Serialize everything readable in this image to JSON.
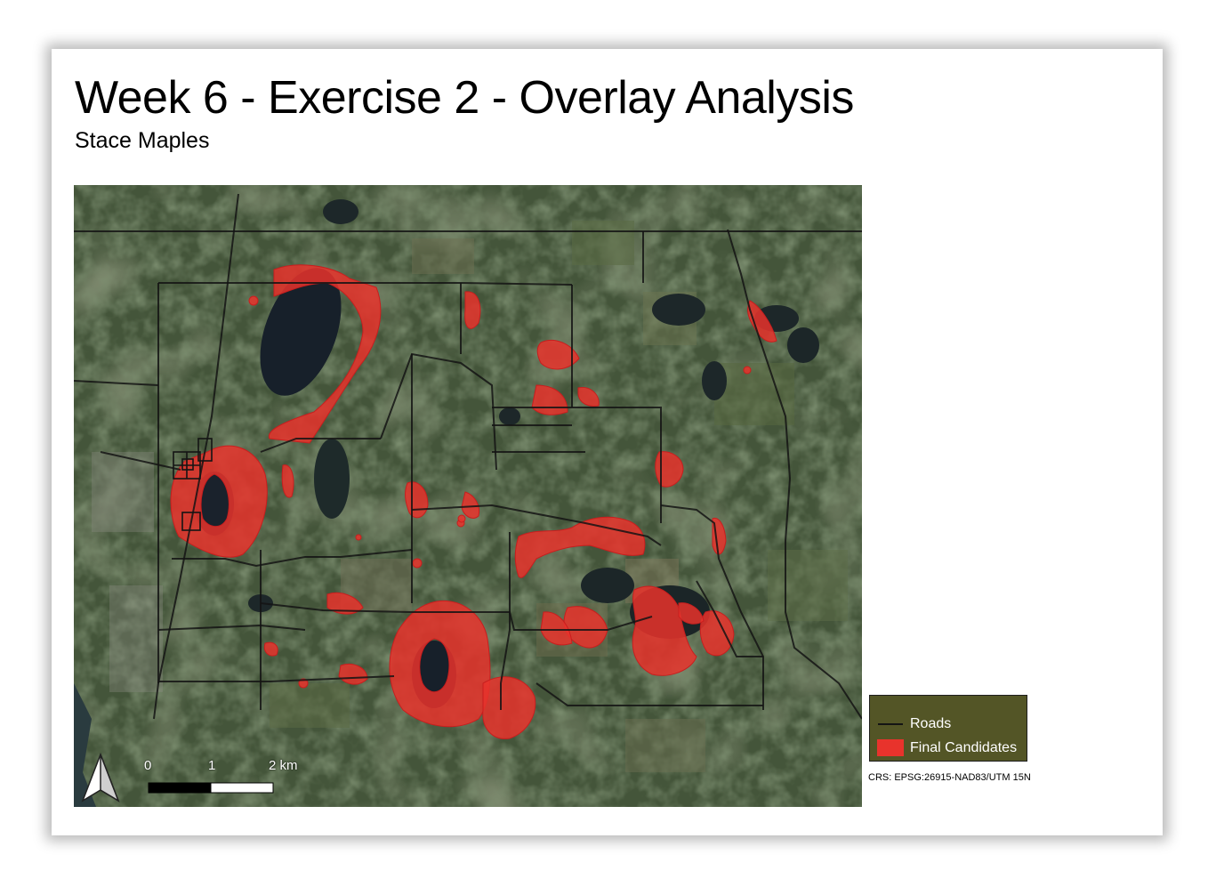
{
  "title": "Week 6 - Exercise 2 - Overlay Analysis",
  "subtitle": "Stace Maples",
  "map": {
    "basemap": "satellite-imagery",
    "colors": {
      "candidates": "#e8332c",
      "roads": "#141414"
    },
    "north_arrow": "north-arrow-icon",
    "scale_bar": {
      "labels": [
        "0",
        "1",
        "2 km"
      ]
    }
  },
  "legend": {
    "items": [
      {
        "label": "Roads",
        "symbol": "line"
      },
      {
        "label": "Final Candidates",
        "symbol": "fill"
      }
    ]
  },
  "crs": "CRS: EPSG:26915-NAD83/UTM 15N"
}
